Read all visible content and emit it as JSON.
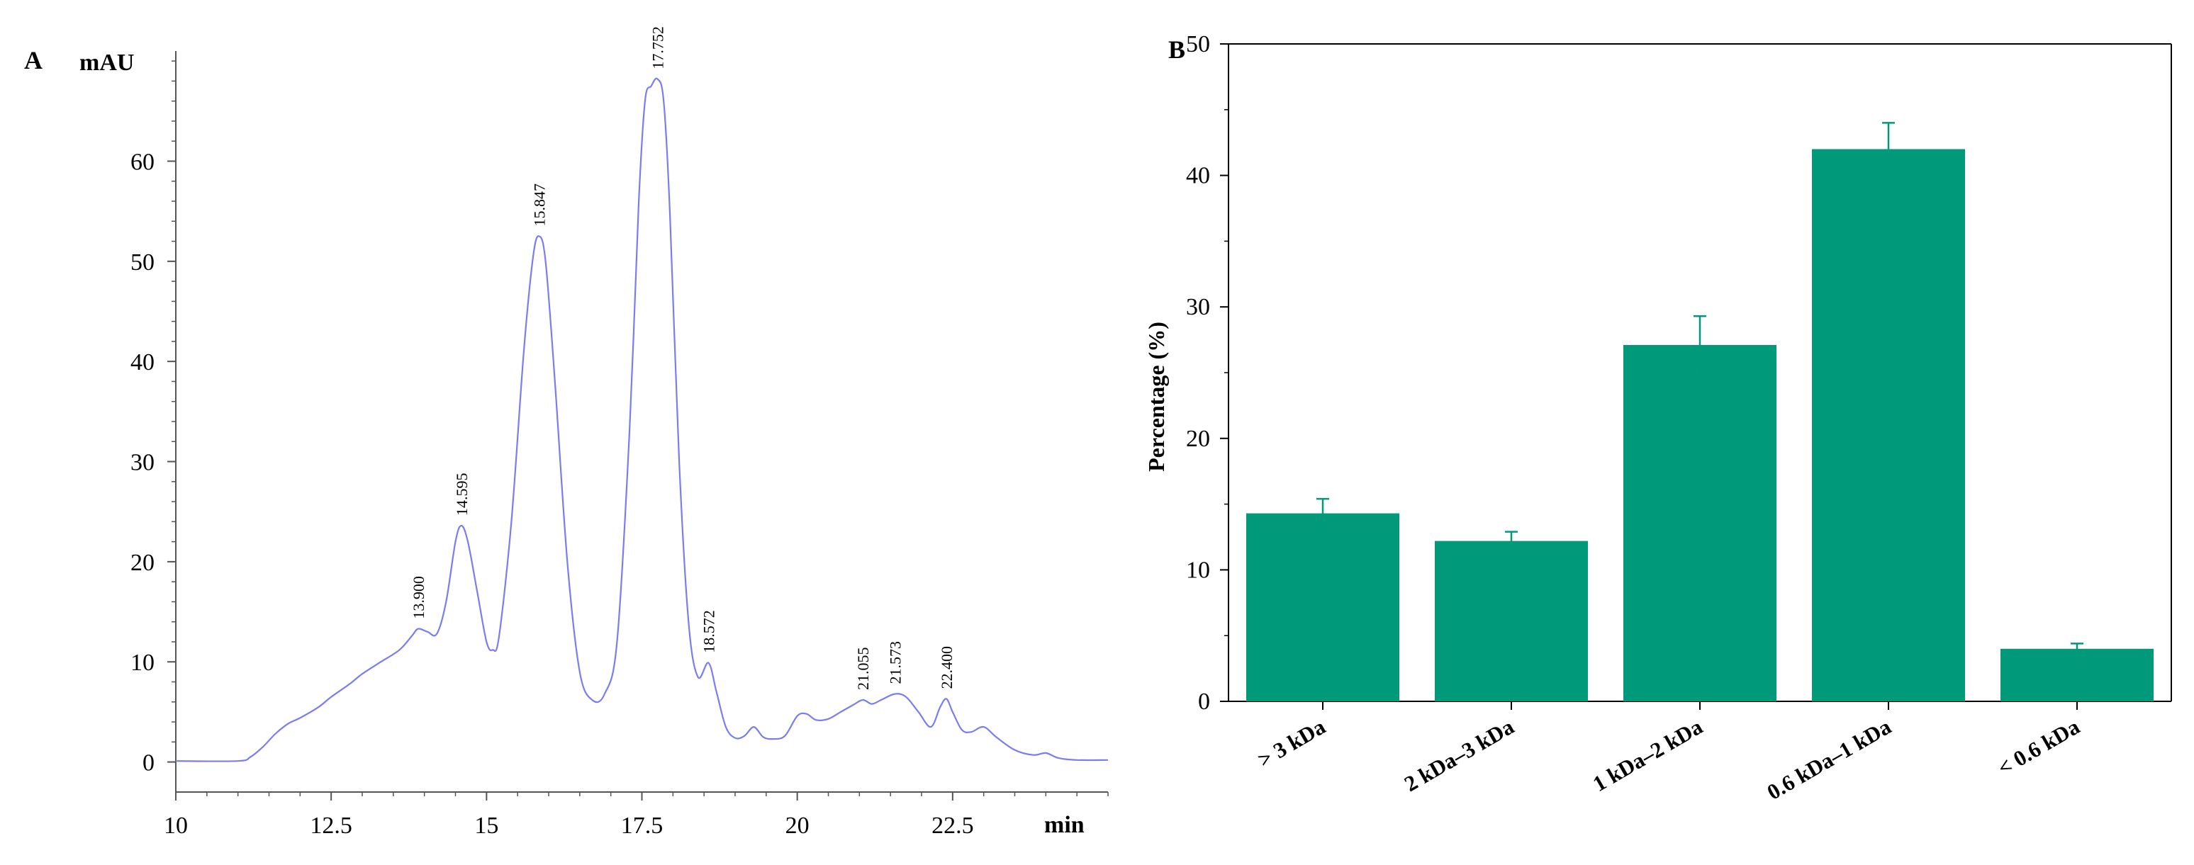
{
  "chart_data": [
    {
      "panel": "A",
      "type": "line",
      "ylabel": "mAU",
      "xlabel": "min",
      "xlim": [
        10,
        25
      ],
      "ylim": [
        -3,
        71
      ],
      "x_ticks": [
        "10",
        "12.5",
        "15",
        "17.5",
        "20",
        "22.5"
      ],
      "y_ticks": [
        "0",
        "10",
        "20",
        "30",
        "40",
        "50",
        "60"
      ],
      "series": [
        {
          "name": "chromatogram",
          "color": "#7c7cf2",
          "points": [
            [
              10,
              0.1
            ],
            [
              11.0,
              0.1
            ],
            [
              11.2,
              0.5
            ],
            [
              11.4,
              1.5
            ],
            [
              11.6,
              2.8
            ],
            [
              11.8,
              3.8
            ],
            [
              12.0,
              4.4
            ],
            [
              12.3,
              5.5
            ],
            [
              12.5,
              6.5
            ],
            [
              12.8,
              7.8
            ],
            [
              13.0,
              8.8
            ],
            [
              13.3,
              10.0
            ],
            [
              13.6,
              11.2
            ],
            [
              13.8,
              12.6
            ],
            [
              13.9,
              13.3
            ],
            [
              14.05,
              13.0
            ],
            [
              14.2,
              12.8
            ],
            [
              14.35,
              16
            ],
            [
              14.5,
              22
            ],
            [
              14.595,
              23.6
            ],
            [
              14.7,
              22
            ],
            [
              14.85,
              17
            ],
            [
              15.0,
              12
            ],
            [
              15.1,
              11.2
            ],
            [
              15.2,
              12.5
            ],
            [
              15.4,
              24
            ],
            [
              15.6,
              41
            ],
            [
              15.75,
              50.5
            ],
            [
              15.847,
              52.5
            ],
            [
              15.95,
              50
            ],
            [
              16.1,
              38
            ],
            [
              16.3,
              20
            ],
            [
              16.5,
              9
            ],
            [
              16.7,
              6.2
            ],
            [
              16.9,
              6.8
            ],
            [
              17.1,
              12
            ],
            [
              17.3,
              33
            ],
            [
              17.45,
              56
            ],
            [
              17.55,
              66
            ],
            [
              17.65,
              67.5
            ],
            [
              17.752,
              68.2
            ],
            [
              17.85,
              66
            ],
            [
              17.95,
              55
            ],
            [
              18.1,
              30
            ],
            [
              18.25,
              14
            ],
            [
              18.4,
              8.5
            ],
            [
              18.572,
              9.9
            ],
            [
              18.7,
              7
            ],
            [
              18.85,
              3.5
            ],
            [
              19.0,
              2.4
            ],
            [
              19.15,
              2.6
            ],
            [
              19.3,
              3.5
            ],
            [
              19.45,
              2.5
            ],
            [
              19.6,
              2.3
            ],
            [
              19.8,
              2.6
            ],
            [
              20.0,
              4.6
            ],
            [
              20.15,
              4.8
            ],
            [
              20.3,
              4.2
            ],
            [
              20.5,
              4.3
            ],
            [
              20.7,
              5.0
            ],
            [
              20.9,
              5.7
            ],
            [
              21.055,
              6.2
            ],
            [
              21.2,
              5.8
            ],
            [
              21.35,
              6.2
            ],
            [
              21.573,
              6.8
            ],
            [
              21.75,
              6.5
            ],
            [
              21.95,
              5.0
            ],
            [
              22.15,
              3.5
            ],
            [
              22.3,
              5.5
            ],
            [
              22.4,
              6.3
            ],
            [
              22.5,
              5.0
            ],
            [
              22.65,
              3.2
            ],
            [
              22.8,
              3.0
            ],
            [
              23.0,
              3.5
            ],
            [
              23.2,
              2.5
            ],
            [
              23.5,
              1.2
            ],
            [
              23.8,
              0.7
            ],
            [
              24.0,
              0.9
            ],
            [
              24.2,
              0.4
            ],
            [
              24.5,
              0.2
            ],
            [
              25,
              0.2
            ]
          ]
        }
      ],
      "peak_labels": [
        {
          "text": "13.900",
          "x": 13.9,
          "y": 13.3
        },
        {
          "text": "14.595",
          "x": 14.595,
          "y": 23.6
        },
        {
          "text": "15.847",
          "x": 15.847,
          "y": 52.5
        },
        {
          "text": "17.752",
          "x": 17.752,
          "y": 68.2
        },
        {
          "text": "18.572",
          "x": 18.572,
          "y": 9.9
        },
        {
          "text": "21.055",
          "x": 21.055,
          "y": 6.2
        },
        {
          "text": "21.573",
          "x": 21.573,
          "y": 6.8
        },
        {
          "text": "22.400",
          "x": 22.4,
          "y": 6.3
        }
      ]
    },
    {
      "panel": "B",
      "type": "bar",
      "ylabel": "Percentage (%)",
      "ylim": [
        0,
        50
      ],
      "y_ticks": [
        "0",
        "10",
        "20",
        "30",
        "40",
        "50"
      ],
      "categories": [
        "> 3 kDa",
        "2 kDa–3 kDa",
        "1 kDa–2 kDa",
        "0.6 kDa–1 kDa",
        "< 0.6 kDa"
      ],
      "values": [
        14.3,
        12.2,
        27.1,
        42.0,
        4.0
      ],
      "errors": [
        1.1,
        0.7,
        2.2,
        2.0,
        0.4
      ],
      "bar_color": "#009979"
    }
  ]
}
